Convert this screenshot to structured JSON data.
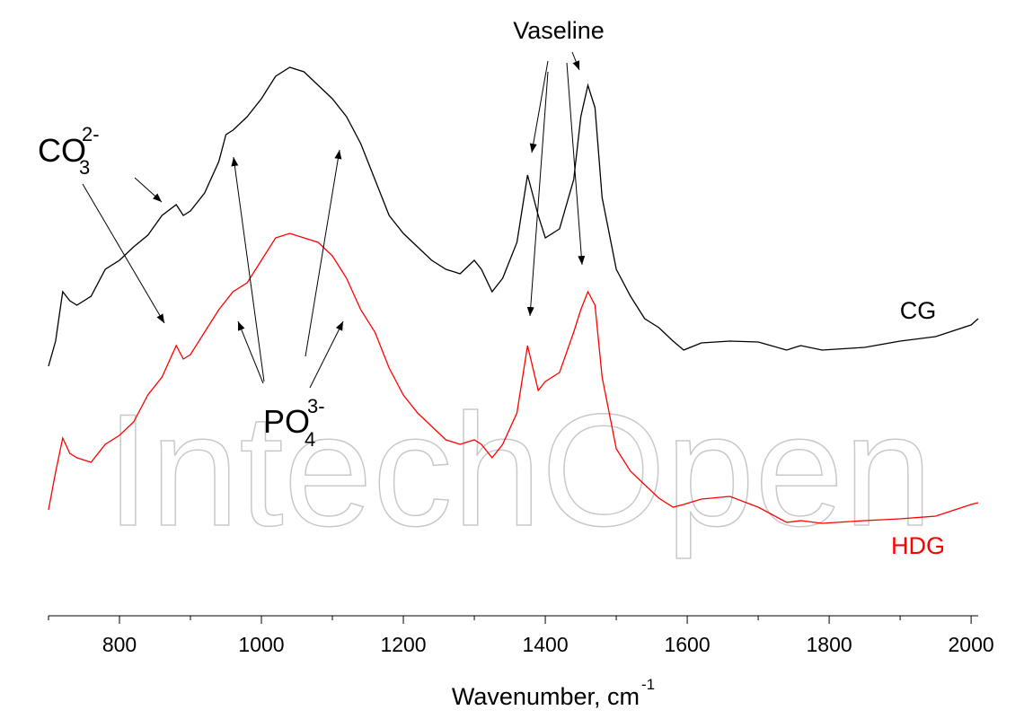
{
  "chart_data": {
    "type": "line",
    "x": [
      700,
      710,
      720,
      730,
      740,
      760,
      780,
      800,
      820,
      840,
      860,
      880,
      890,
      900,
      920,
      940,
      950,
      960,
      980,
      1000,
      1020,
      1040,
      1060,
      1080,
      1100,
      1120,
      1140,
      1160,
      1180,
      1200,
      1220,
      1240,
      1260,
      1280,
      1300,
      1310,
      1325,
      1340,
      1360,
      1375,
      1390,
      1400,
      1420,
      1440,
      1450,
      1460,
      1470,
      1480,
      1500,
      1520,
      1540,
      1560,
      1580,
      1595,
      1620,
      1660,
      1700,
      1740,
      1760,
      1790,
      1850,
      1900,
      1950,
      2000,
      2010
    ],
    "series": [
      {
        "name": "CG",
        "color": "#000000",
        "values": [
          278,
          306,
          361,
          351,
          346,
          356,
          386,
          396,
          411,
          424,
          446,
          458,
          446,
          451,
          471,
          506,
          536,
          541,
          556,
          576,
          601,
          611,
          606,
          591,
          576,
          556,
          526,
          486,
          446,
          426,
          411,
          396,
          386,
          381,
          396,
          386,
          361,
          376,
          416,
          491,
          446,
          421,
          431,
          486,
          556,
          591,
          566,
          466,
          386,
          356,
          331,
          321,
          306,
          296,
          304,
          306,
          305,
          296,
          301,
          296,
          299,
          306,
          311,
          324,
          331
        ]
      },
      {
        "name": "HDG",
        "color": "#ff0000",
        "values": [
          118,
          160,
          198,
          181,
          176,
          171,
          191,
          201,
          216,
          246,
          266,
          301,
          286,
          291,
          316,
          341,
          351,
          361,
          371,
          396,
          421,
          426,
          421,
          416,
          401,
          376,
          341,
          316,
          276,
          246,
          226,
          211,
          196,
          191,
          196,
          191,
          176,
          191,
          226,
          301,
          251,
          261,
          271,
          316,
          341,
          361,
          346,
          266,
          186,
          161,
          146,
          131,
          121,
          124,
          130,
          133,
          121,
          104,
          106,
          103,
          106,
          108,
          111,
          124,
          126
        ]
      }
    ],
    "xlim": [
      700,
      2010
    ],
    "ylim": [
      0,
      676
    ],
    "xticks": [
      800,
      1000,
      1200,
      1400,
      1600,
      1800,
      2000
    ],
    "xminorticks": [
      700,
      900,
      1100,
      1300,
      1500,
      1700,
      1900
    ],
    "xlabel": {
      "text": "Wavenumber, cm",
      "sup": "-1"
    },
    "annotations": [
      {
        "text": "CO",
        "sub": "3",
        "sup": "2-"
      },
      {
        "text": "PO",
        "sub": "4",
        "sup": "3-"
      },
      {
        "text": "Vaseline"
      }
    ],
    "watermark": "IntechOpen"
  }
}
